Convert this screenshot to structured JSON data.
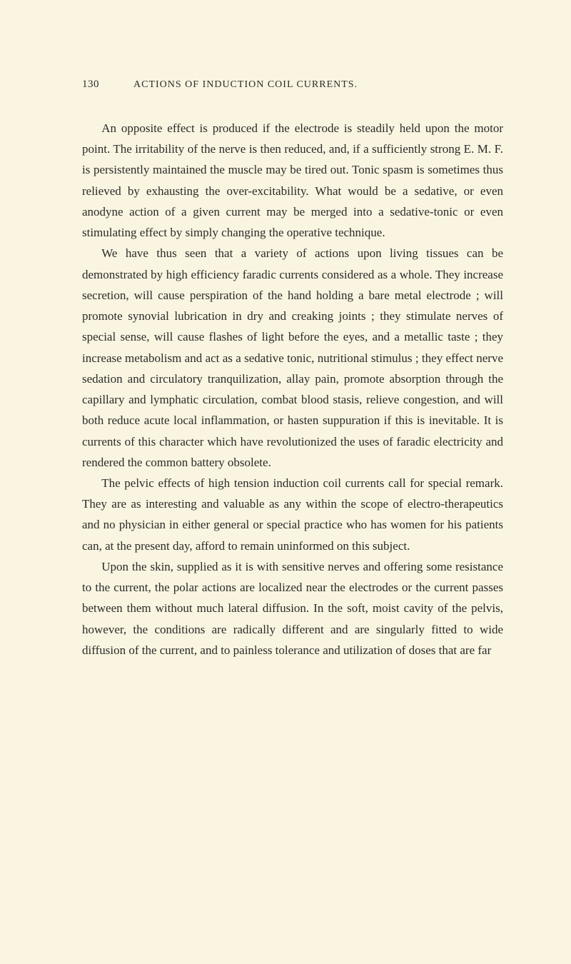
{
  "page": {
    "number": "130",
    "header": "ACTIONS OF INDUCTION COIL CURRENTS.",
    "background_color": "#faf5e0",
    "text_color": "#2a2a2a",
    "body_font_size_pt": 12.5,
    "line_height": 1.72,
    "paragraphs": [
      "An opposite effect is produced if the electrode is steadily held upon the motor point. The irritability of the nerve is then reduced, and, if a sufficiently strong E. M. F. is persistently maintained the muscle may be tired out. Tonic spasm is sometimes thus relieved by exhausting the over-excitability. What would be a sedative, or even anodyne action of a given current may be merged into a sedative-tonic or even stimulating effect by simply changing the operative technique.",
      "We have thus seen that a variety of actions upon living tissues can be demonstrated by high efficiency faradic currents considered as a whole. They increase secretion, will cause perspiration of the hand holding a bare metal electrode ; will promote synovial lubrication in dry and creaking joints ; they stimulate nerves of special sense, will cause flashes of light before the eyes, and a metallic taste ; they increase metabolism and act as a sedative tonic, nutritional stimulus ; they effect nerve sedation and circulatory tranquilization, allay pain, promote absorption through the capillary and lymphatic circulation, combat blood stasis, relieve congestion, and will both reduce acute local inflammation, or hasten suppuration if this is inevitable. It is currents of this character which have revolutionized the uses of faradic electricity and rendered the common battery obsolete.",
      "The pelvic effects of high tension induction coil currents call for special remark. They are as interesting and valuable as any within the scope of electro-therapeutics and no physician in either general or special practice who has women for his patients can, at the present day, afford to remain uninformed on this subject.",
      "Upon the skin, supplied as it is with sensitive nerves and offering some resistance to the current, the polar actions are localized near the electrodes or the current passes between them without much lateral diffusion. In the soft, moist cavity of the pelvis, however, the conditions are radically different and are singularly fitted to wide diffusion of the current, and to painless tolerance and utilization of doses that are far"
    ]
  }
}
